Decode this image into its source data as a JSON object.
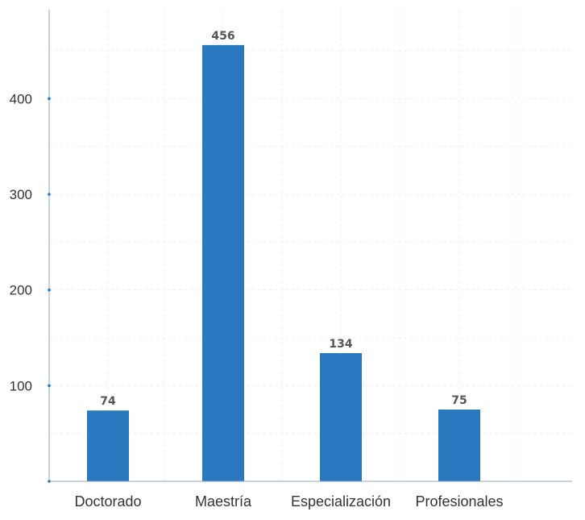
{
  "chart_data": {
    "type": "bar",
    "categories": [
      "Doctorado",
      "Maestría",
      "Especialización",
      "Profesionales"
    ],
    "values": [
      74,
      456,
      134,
      75
    ],
    "data_labels": [
      "74",
      "456",
      "134",
      "75"
    ],
    "y_ticks": [
      100,
      200,
      300,
      400
    ],
    "y_tick_labels": [
      "100",
      "200",
      "300",
      "400"
    ],
    "ylim": [
      0,
      493
    ],
    "title": "",
    "xlabel": "",
    "ylabel": "",
    "grid": true,
    "bar_color": "#2a78bf",
    "axis_color": "#8fa9c0",
    "tick_dot_color": "#2a78bf"
  }
}
